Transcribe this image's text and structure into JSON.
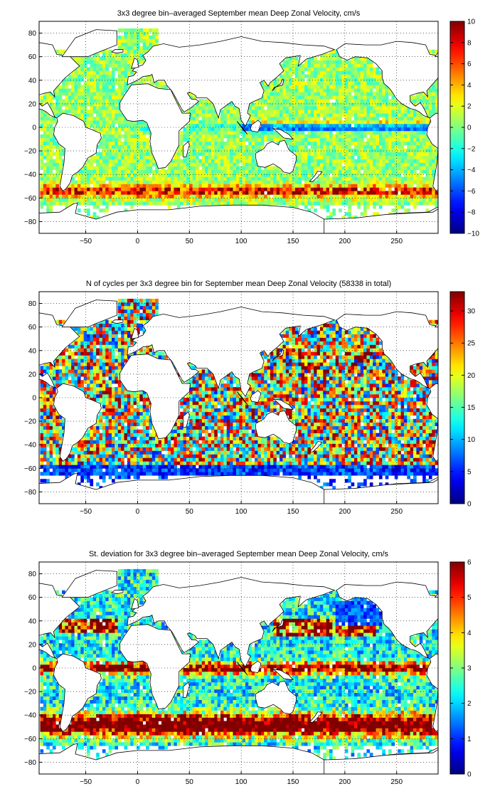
{
  "chart_data": [
    {
      "type": "heatmap",
      "title": "3x3 degree bin–averaged September mean Deep Zonal Velocity, cm/s",
      "xlim": [
        -95,
        290
      ],
      "ylim": [
        -90,
        90
      ],
      "xticks": [
        -50,
        0,
        50,
        100,
        150,
        200,
        250
      ],
      "xtick_labels": [
        "−50",
        "0",
        "50",
        "100",
        "150",
        "200",
        "250"
      ],
      "yticks": [
        -80,
        -60,
        -40,
        -20,
        0,
        20,
        40,
        60,
        80
      ],
      "ytick_labels": [
        "−80",
        "−60",
        "−40",
        "−20",
        "0",
        "20",
        "40",
        "60",
        "80"
      ],
      "grid": true,
      "bin_deg": 3,
      "colormap": "jet",
      "clim": [
        -10,
        10
      ],
      "colorbar_ticks": [
        -10,
        -8,
        -6,
        -4,
        -2,
        0,
        2,
        4,
        6,
        8,
        10
      ],
      "colorbar_tick_labels": [
        "−10",
        "−8",
        "−6",
        "−4",
        "−2",
        "0",
        "2",
        "4",
        "6",
        "8",
        "10"
      ],
      "features": [
        {
          "name": "Antarctic Circumpolar Current",
          "lat": -55,
          "value": 7
        },
        {
          "name": "Equatorial band",
          "lat": 0,
          "value": -7
        },
        {
          "name": "Open ocean background",
          "value": 0
        }
      ]
    },
    {
      "type": "heatmap",
      "title": "N of cycles per 3x3 degree bin for September mean Deep Zonal Velocity (58338 in total)",
      "xlim": [
        -95,
        290
      ],
      "ylim": [
        -90,
        90
      ],
      "xticks": [
        -50,
        0,
        50,
        100,
        150,
        200,
        250
      ],
      "xtick_labels": [
        "−50",
        "0",
        "50",
        "100",
        "150",
        "200",
        "250"
      ],
      "yticks": [
        -80,
        -60,
        -40,
        -20,
        0,
        20,
        40,
        60,
        80
      ],
      "ytick_labels": [
        "−80",
        "−60",
        "−40",
        "−20",
        "0",
        "20",
        "40",
        "60",
        "80"
      ],
      "grid": true,
      "bin_deg": 3,
      "colormap": "jet",
      "clim": [
        0,
        33
      ],
      "colorbar_ticks": [
        0,
        5,
        10,
        15,
        20,
        25,
        30
      ],
      "colorbar_tick_labels": [
        "0",
        "5",
        "10",
        "15",
        "20",
        "25",
        "30"
      ],
      "total_cycles": 58338
    },
    {
      "type": "heatmap",
      "title": "St. deviation for 3x3 degree bin–averaged September mean Deep Zonal Velocity, cm/s",
      "xlim": [
        -95,
        290
      ],
      "ylim": [
        -90,
        90
      ],
      "xticks": [
        -50,
        0,
        50,
        100,
        150,
        200,
        250
      ],
      "xtick_labels": [
        "−50",
        "0",
        "50",
        "100",
        "150",
        "200",
        "250"
      ],
      "yticks": [
        -80,
        -60,
        -40,
        -20,
        0,
        20,
        40,
        60,
        80
      ],
      "ytick_labels": [
        "−80",
        "−60",
        "−40",
        "−20",
        "0",
        "20",
        "40",
        "60",
        "80"
      ],
      "grid": true,
      "bin_deg": 3,
      "colormap": "jet",
      "clim": [
        0,
        6
      ],
      "colorbar_ticks": [
        0,
        1,
        2,
        3,
        4,
        5,
        6
      ],
      "colorbar_tick_labels": [
        "0",
        "1",
        "2",
        "3",
        "4",
        "5",
        "6"
      ],
      "features": [
        {
          "name": "Antarctic Circumpolar Current",
          "lat": -50,
          "value": 6
        },
        {
          "name": "Equatorial band",
          "lat": 0,
          "value": 5
        },
        {
          "name": "Kuroshio / Gulf Stream",
          "lat": 35,
          "value": 5
        },
        {
          "name": "NE Pacific",
          "lat": 45,
          "value": 0.8
        }
      ]
    }
  ]
}
